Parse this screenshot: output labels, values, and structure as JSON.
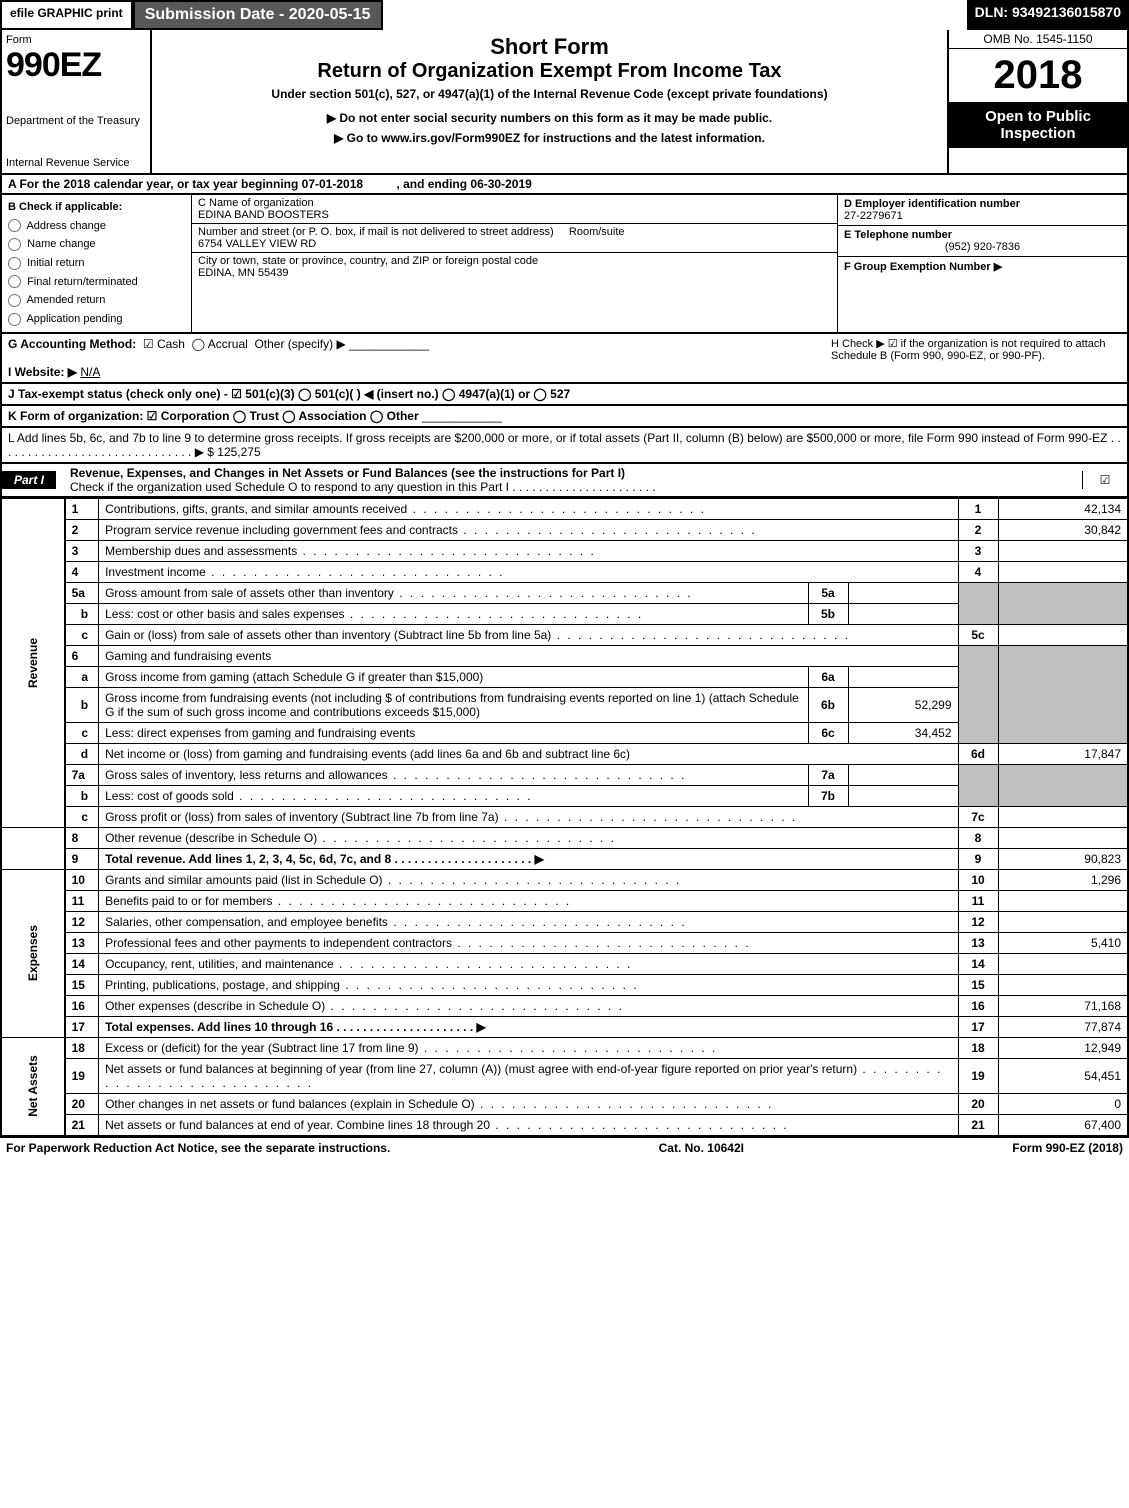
{
  "topbar": {
    "efile": "efile GRAPHIC print",
    "subdate_label": "Submission Date - 2020-05-15",
    "dln": "DLN: 93492136015870"
  },
  "header": {
    "form_word": "Form",
    "form_num": "990EZ",
    "dept": "Department of the Treasury",
    "irs": "Internal Revenue Service",
    "title1": "Short Form",
    "title2": "Return of Organization Exempt From Income Tax",
    "sub": "Under section 501(c), 527, or 4947(a)(1) of the Internal Revenue Code (except private foundations)",
    "note": "▶ Do not enter social security numbers on this form as it may be made public.",
    "link": "▶ Go to www.irs.gov/Form990EZ for instructions and the latest information.",
    "omb": "OMB No. 1545-1150",
    "year": "2018",
    "open": "Open to Public Inspection"
  },
  "period": {
    "text_a": "A For the 2018 calendar year, or tax year beginning 07-01-2018",
    "text_b": ", and ending 06-30-2019"
  },
  "checks": {
    "hdr": "B Check if applicable:",
    "addr": "Address change",
    "name": "Name change",
    "init": "Initial return",
    "final": "Final return/terminated",
    "amend": "Amended return",
    "app": "Application pending"
  },
  "org": {
    "c_label": "C Name of organization",
    "c_val": "EDINA BAND BOOSTERS",
    "street_label": "Number and street (or P. O. box, if mail is not delivered to street address)",
    "room_label": "Room/suite",
    "street_val": "6754 VALLEY VIEW RD",
    "city_label": "City or town, state or province, country, and ZIP or foreign postal code",
    "city_val": "EDINA, MN  55439"
  },
  "rcol": {
    "d_label": "D Employer identification number",
    "d_val": "27-2279671",
    "e_label": "E Telephone number",
    "e_val": "(952) 920-7836",
    "f_label": "F Group Exemption Number ▶"
  },
  "gline": {
    "g": "G Accounting Method:",
    "cash": "Cash",
    "accrual": "Accrual",
    "other": "Other (specify) ▶",
    "h": "H  Check ▶ ☑ if the organization is not required to attach Schedule B (Form 990, 990-EZ, or 990-PF)."
  },
  "iline": {
    "i": "I Website: ▶",
    "ival": "N/A"
  },
  "jline": {
    "j": "J Tax-exempt status (check only one) - ☑ 501(c)(3)  ◯ 501(c)(  ) ◀ (insert no.)  ◯ 4947(a)(1) or  ◯ 527"
  },
  "kline": {
    "k": "K Form of organization:  ☑ Corporation  ◯ Trust  ◯ Association  ◯ Other"
  },
  "lline": {
    "l": "L Add lines 5b, 6c, and 7b to line 9 to determine gross receipts. If gross receipts are $200,000 or more, or if total assets (Part II, column (B) below) are $500,000 or more, file Form 990 instead of Form 990-EZ . . . . . . . . . . . . . . . . . . . . . . . . . . . . . . ▶ $ 125,275"
  },
  "part1": {
    "label": "Part I",
    "title": "Revenue, Expenses, and Changes in Net Assets or Fund Balances (see the instructions for Part I)",
    "sub": "Check if the organization used Schedule O to respond to any question in this Part I . . . . . . . . . . . . . . . . . . . . . ."
  },
  "sections": {
    "revenue": "Revenue",
    "expenses": "Expenses",
    "netassets": "Net Assets"
  },
  "lines": {
    "l1": {
      "n": "1",
      "d": "Contributions, gifts, grants, and similar amounts received",
      "r": "1",
      "v": "42,134"
    },
    "l2": {
      "n": "2",
      "d": "Program service revenue including government fees and contracts",
      "r": "2",
      "v": "30,842"
    },
    "l3": {
      "n": "3",
      "d": "Membership dues and assessments",
      "r": "3",
      "v": ""
    },
    "l4": {
      "n": "4",
      "d": "Investment income",
      "r": "4",
      "v": ""
    },
    "l5a": {
      "n": "5a",
      "d": "Gross amount from sale of assets other than inventory",
      "m": "5a",
      "mv": ""
    },
    "l5b": {
      "n": "b",
      "d": "Less: cost or other basis and sales expenses",
      "m": "5b",
      "mv": ""
    },
    "l5c": {
      "n": "c",
      "d": "Gain or (loss) from sale of assets other than inventory (Subtract line 5b from line 5a)",
      "r": "5c",
      "v": ""
    },
    "l6": {
      "n": "6",
      "d": "Gaming and fundraising events"
    },
    "l6a": {
      "n": "a",
      "d": "Gross income from gaming (attach Schedule G if greater than $15,000)",
      "m": "6a",
      "mv": ""
    },
    "l6b": {
      "n": "b",
      "d": "Gross income from fundraising events (not including $                    of contributions from fundraising events reported on line 1) (attach Schedule G if the sum of such gross income and contributions exceeds $15,000)",
      "m": "6b",
      "mv": "52,299"
    },
    "l6c": {
      "n": "c",
      "d": "Less: direct expenses from gaming and fundraising events",
      "m": "6c",
      "mv": "34,452"
    },
    "l6d": {
      "n": "d",
      "d": "Net income or (loss) from gaming and fundraising events (add lines 6a and 6b and subtract line 6c)",
      "r": "6d",
      "v": "17,847"
    },
    "l7a": {
      "n": "7a",
      "d": "Gross sales of inventory, less returns and allowances",
      "m": "7a",
      "mv": ""
    },
    "l7b": {
      "n": "b",
      "d": "Less: cost of goods sold",
      "m": "7b",
      "mv": ""
    },
    "l7c": {
      "n": "c",
      "d": "Gross profit or (loss) from sales of inventory (Subtract line 7b from line 7a)",
      "r": "7c",
      "v": ""
    },
    "l8": {
      "n": "8",
      "d": "Other revenue (describe in Schedule O)",
      "r": "8",
      "v": ""
    },
    "l9": {
      "n": "9",
      "d": "Total revenue. Add lines 1, 2, 3, 4, 5c, 6d, 7c, and 8 . . . . . . . . . . . . . . . . . . . . . ▶",
      "r": "9",
      "v": "90,823"
    },
    "l10": {
      "n": "10",
      "d": "Grants and similar amounts paid (list in Schedule O)",
      "r": "10",
      "v": "1,296"
    },
    "l11": {
      "n": "11",
      "d": "Benefits paid to or for members",
      "r": "11",
      "v": ""
    },
    "l12": {
      "n": "12",
      "d": "Salaries, other compensation, and employee benefits",
      "r": "12",
      "v": ""
    },
    "l13": {
      "n": "13",
      "d": "Professional fees and other payments to independent contractors",
      "r": "13",
      "v": "5,410"
    },
    "l14": {
      "n": "14",
      "d": "Occupancy, rent, utilities, and maintenance",
      "r": "14",
      "v": ""
    },
    "l15": {
      "n": "15",
      "d": "Printing, publications, postage, and shipping",
      "r": "15",
      "v": ""
    },
    "l16": {
      "n": "16",
      "d": "Other expenses (describe in Schedule O)",
      "r": "16",
      "v": "71,168"
    },
    "l17": {
      "n": "17",
      "d": "Total expenses. Add lines 10 through 16     . . . . . . . . . . . . . . . . . . . . . ▶",
      "r": "17",
      "v": "77,874"
    },
    "l18": {
      "n": "18",
      "d": "Excess or (deficit) for the year (Subtract line 17 from line 9)",
      "r": "18",
      "v": "12,949"
    },
    "l19": {
      "n": "19",
      "d": "Net assets or fund balances at beginning of year (from line 27, column (A)) (must agree with end-of-year figure reported on prior year's return)",
      "r": "19",
      "v": "54,451"
    },
    "l20": {
      "n": "20",
      "d": "Other changes in net assets or fund balances (explain in Schedule O)",
      "r": "20",
      "v": "0"
    },
    "l21": {
      "n": "21",
      "d": "Net assets or fund balances at end of year. Combine lines 18 through 20",
      "r": "21",
      "v": "67,400"
    }
  },
  "footer": {
    "left": "For Paperwork Reduction Act Notice, see the separate instructions.",
    "mid": "Cat. No. 10642I",
    "right": "Form 990-EZ (2018)"
  },
  "colors": {
    "black": "#000000",
    "white": "#ffffff",
    "darkgray": "#585858",
    "shade": "#bfbfbf"
  }
}
